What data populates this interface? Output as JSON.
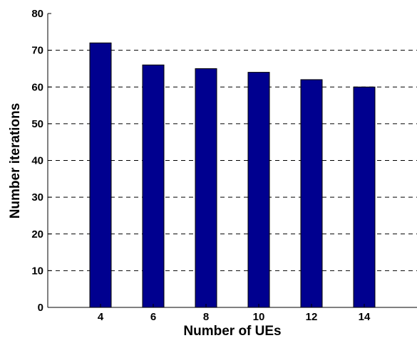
{
  "chart_data": {
    "type": "bar",
    "categories": [
      "4",
      "6",
      "8",
      "10",
      "12",
      "14"
    ],
    "x": [
      4,
      6,
      8,
      10,
      12,
      14
    ],
    "values": [
      72,
      66,
      65,
      64,
      62,
      60
    ],
    "title": "",
    "xlabel": "Number of UEs",
    "ylabel": "Number iterations",
    "xlim": [
      2,
      16
    ],
    "ylim": [
      0,
      80
    ],
    "yticks": [
      0,
      10,
      20,
      30,
      40,
      50,
      60,
      70,
      80
    ],
    "grid": "horizontal dashed",
    "legend": "none",
    "bar_color": "#00008f"
  }
}
